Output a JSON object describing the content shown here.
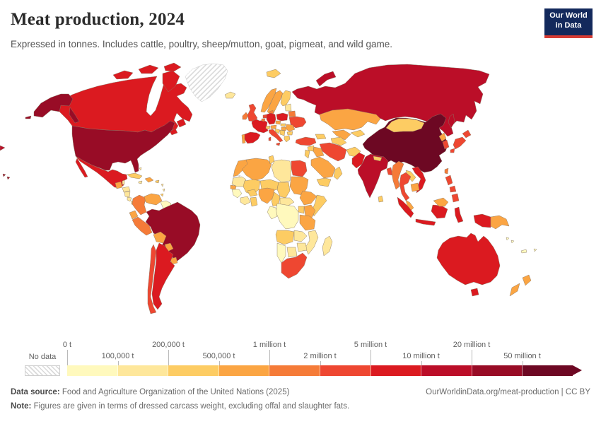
{
  "header": {
    "title": "Meat production, 2024",
    "subtitle": "Expressed in tonnes. Includes cattle, poultry, sheep/mutton, goat, pigmeat, and wild game.",
    "logo_line1": "Our World",
    "logo_line2": "in Data"
  },
  "colors": {
    "scale": [
      "#FFF9BD",
      "#FEE79B",
      "#FDCC63",
      "#FBA543",
      "#F57B38",
      "#EE4731",
      "#DB1A20",
      "#BB0E28",
      "#980C26",
      "#6D0823"
    ],
    "no_data_hatch": "#d9d9d9",
    "border": "#8a7866",
    "logo_bg": "#13295c",
    "logo_red": "#d73c34"
  },
  "legend": {
    "no_data_label": "No data",
    "ticks": [
      {
        "label": "0 t",
        "pos": 0,
        "row": "top"
      },
      {
        "label": "100,000 t",
        "pos": 1,
        "row": "bottom"
      },
      {
        "label": "200,000 t",
        "pos": 2,
        "row": "top"
      },
      {
        "label": "500,000 t",
        "pos": 3,
        "row": "bottom"
      },
      {
        "label": "1 million t",
        "pos": 4,
        "row": "top"
      },
      {
        "label": "2 million t",
        "pos": 5,
        "row": "bottom"
      },
      {
        "label": "5 million t",
        "pos": 6,
        "row": "top"
      },
      {
        "label": "10 million t",
        "pos": 7,
        "row": "bottom"
      },
      {
        "label": "20 million t",
        "pos": 8,
        "row": "top"
      },
      {
        "label": "50 million t",
        "pos": 9,
        "row": "bottom"
      }
    ]
  },
  "footer": {
    "source_label": "Data source:",
    "source": " Food and Agriculture Organization of the United Nations (2025)",
    "link": "OurWorldinData.org/meat-production | CC BY",
    "note_label": "Note:",
    "note": " Figures are given in terms of dressed carcass weight, excluding offal and slaughter fats."
  },
  "chart_data": {
    "type": "heatmap",
    "subtype": "choropleth-world-map",
    "title": "Meat production, 2024",
    "unit": "tonnes",
    "legend_position": "bottom",
    "bins": [
      "0–100,000 t",
      "100,000–200,000 t",
      "200,000–500,000 t",
      "500,000 t–1 million t",
      "1–2 million t",
      "2–5 million t",
      "5–10 million t",
      "10–20 million t",
      "20–50 million t",
      "50+ million t"
    ],
    "no_data_regions": [
      "Greenland",
      "Western Sahara"
    ],
    "countries": [
      {
        "id": "canada",
        "name": "Canada",
        "bucket": 6
      },
      {
        "id": "alaska",
        "name": "United States (Alaska)",
        "bucket": 8
      },
      {
        "id": "aleutians",
        "name": "United States (Aleutians)",
        "bucket": 8
      },
      {
        "id": "usa",
        "name": "United States",
        "bucket": 8
      },
      {
        "id": "hawaii",
        "name": "United States (Hawaii)",
        "bucket": 8
      },
      {
        "id": "greenland",
        "name": "Greenland",
        "bucket": -1
      },
      {
        "id": "mexico",
        "name": "Mexico",
        "bucket": 6
      },
      {
        "id": "baja",
        "name": "Mexico (Baja)",
        "bucket": 6
      },
      {
        "id": "guatemala",
        "name": "Guatemala",
        "bucket": 3
      },
      {
        "id": "belize",
        "name": "Belize",
        "bucket": 1
      },
      {
        "id": "honduras",
        "name": "Honduras",
        "bucket": 1
      },
      {
        "id": "nicaragua",
        "name": "Nicaragua",
        "bucket": 1
      },
      {
        "id": "costa-rica",
        "name": "Costa Rica",
        "bucket": 1
      },
      {
        "id": "panama",
        "name": "Panama",
        "bucket": 2
      },
      {
        "id": "cuba",
        "name": "Cuba",
        "bucket": 2
      },
      {
        "id": "jamaica",
        "name": "Jamaica",
        "bucket": 1
      },
      {
        "id": "hispaniola",
        "name": "Dominican Republic / Haiti",
        "bucket": 3
      },
      {
        "id": "puerto-rico",
        "name": "Puerto Rico",
        "bucket": 2
      },
      {
        "id": "bahamas",
        "name": "Bahamas",
        "bucket": 1
      },
      {
        "id": "lesser-antilles",
        "name": "Lesser Antilles",
        "bucket": 1
      },
      {
        "id": "trinidad",
        "name": "Trinidad and Tobago",
        "bucket": 2
      },
      {
        "id": "colombia",
        "name": "Colombia",
        "bucket": 4
      },
      {
        "id": "venezuela",
        "name": "Venezuela",
        "bucket": 3
      },
      {
        "id": "guyanas",
        "name": "Guyana / Suriname",
        "bucket": 0
      },
      {
        "id": "ecuador",
        "name": "Ecuador",
        "bucket": 3
      },
      {
        "id": "peru",
        "name": "Peru",
        "bucket": 4
      },
      {
        "id": "brazil",
        "name": "Brazil",
        "bucket": 8
      },
      {
        "id": "bolivia",
        "name": "Bolivia",
        "bucket": 3
      },
      {
        "id": "paraguay",
        "name": "Paraguay",
        "bucket": 3
      },
      {
        "id": "uruguay",
        "name": "Uruguay",
        "bucket": 3
      },
      {
        "id": "argentina",
        "name": "Argentina",
        "bucket": 6
      },
      {
        "id": "chile",
        "name": "Chile",
        "bucket": 5
      },
      {
        "id": "iceland",
        "name": "Iceland",
        "bucket": 1
      },
      {
        "id": "ireland",
        "name": "Ireland",
        "bucket": 4
      },
      {
        "id": "uk",
        "name": "United Kingdom",
        "bucket": 5
      },
      {
        "id": "portugal",
        "name": "Portugal",
        "bucket": 3
      },
      {
        "id": "spain",
        "name": "Spain",
        "bucket": 6
      },
      {
        "id": "france",
        "name": "France",
        "bucket": 6
      },
      {
        "id": "netherlands",
        "name": "Netherlands",
        "bucket": 5
      },
      {
        "id": "belgium",
        "name": "Belgium",
        "bucket": 4
      },
      {
        "id": "germany",
        "name": "Germany",
        "bucket": 6
      },
      {
        "id": "denmark",
        "name": "Denmark",
        "bucket": 4
      },
      {
        "id": "norway",
        "name": "Norway",
        "bucket": 3
      },
      {
        "id": "sweden",
        "name": "Sweden",
        "bucket": 3
      },
      {
        "id": "finland",
        "name": "Finland",
        "bucket": 2
      },
      {
        "id": "svalbard",
        "name": "Svalbard",
        "bucket": 2
      },
      {
        "id": "baltics",
        "name": "Baltic states",
        "bucket": 1
      },
      {
        "id": "belarus",
        "name": "Belarus",
        "bucket": 4
      },
      {
        "id": "poland",
        "name": "Poland",
        "bucket": 6
      },
      {
        "id": "czechia",
        "name": "Czechia",
        "bucket": 3
      },
      {
        "id": "slovakia",
        "name": "Slovakia",
        "bucket": 2
      },
      {
        "id": "austria",
        "name": "Austria",
        "bucket": 3
      },
      {
        "id": "switzerland",
        "name": "Switzerland",
        "bucket": 2
      },
      {
        "id": "hungary",
        "name": "Hungary",
        "bucket": 3
      },
      {
        "id": "ukraine",
        "name": "Ukraine",
        "bucket": 5
      },
      {
        "id": "romania",
        "name": "Romania",
        "bucket": 3
      },
      {
        "id": "bulgaria",
        "name": "Bulgaria",
        "bucket": 2
      },
      {
        "id": "serbia",
        "name": "Serbia",
        "bucket": 2
      },
      {
        "id": "croatia",
        "name": "Croatia / Bosnia",
        "bucket": 2
      },
      {
        "id": "greece",
        "name": "Greece",
        "bucket": 2
      },
      {
        "id": "italy",
        "name": "Italy",
        "bucket": 5
      },
      {
        "id": "sicily",
        "name": "Italy (Sicily)",
        "bucket": 5
      },
      {
        "id": "sardinia",
        "name": "Italy (Sardinia)",
        "bucket": 5
      },
      {
        "id": "russia",
        "name": "Russia",
        "bucket": 7
      },
      {
        "id": "russia-wrap",
        "name": "Russia (far east)",
        "bucket": 7
      },
      {
        "id": "novaya-zemlya",
        "name": "Russia (Novaya Zemlya)",
        "bucket": 7
      },
      {
        "id": "sakhalin",
        "name": "Russia (Sakhalin)",
        "bucket": 7
      },
      {
        "id": "turkey",
        "name": "Turkey",
        "bucket": 5
      },
      {
        "id": "caucasus",
        "name": "Georgia / Azerbaijan",
        "bucket": 2
      },
      {
        "id": "kazakhstan",
        "name": "Kazakhstan",
        "bucket": 3
      },
      {
        "id": "uzbekistan",
        "name": "Uzbekistan",
        "bucket": 3
      },
      {
        "id": "turkmenistan",
        "name": "Turkmenistan",
        "bucket": 2
      },
      {
        "id": "kyrgyz-tajik",
        "name": "Kyrgyzstan / Tajikistan",
        "bucket": 2
      },
      {
        "id": "iran",
        "name": "Iran",
        "bucket": 5
      },
      {
        "id": "iraq",
        "name": "Iraq",
        "bucket": 3
      },
      {
        "id": "syria",
        "name": "Syria",
        "bucket": 2
      },
      {
        "id": "israel-jordan",
        "name": "Israel / Jordan",
        "bucket": 2
      },
      {
        "id": "saudi-arabia",
        "name": "Saudi Arabia",
        "bucket": 3
      },
      {
        "id": "yemen",
        "name": "Yemen",
        "bucket": 2
      },
      {
        "id": "oman",
        "name": "Oman",
        "bucket": 2
      },
      {
        "id": "afghanistan",
        "name": "Afghanistan",
        "bucket": 2
      },
      {
        "id": "pakistan",
        "name": "Pakistan",
        "bucket": 6
      },
      {
        "id": "india",
        "name": "India",
        "bucket": 7
      },
      {
        "id": "nepal",
        "name": "Nepal",
        "bucket": 2
      },
      {
        "id": "bangladesh",
        "name": "Bangladesh",
        "bucket": 5
      },
      {
        "id": "sri-lanka",
        "name": "Sri Lanka",
        "bucket": 2
      },
      {
        "id": "myanmar",
        "name": "Myanmar",
        "bucket": 4
      },
      {
        "id": "thailand",
        "name": "Thailand",
        "bucket": 5
      },
      {
        "id": "laos",
        "name": "Laos",
        "bucket": 2
      },
      {
        "id": "vietnam",
        "name": "Vietnam",
        "bucket": 6
      },
      {
        "id": "cambodia",
        "name": "Cambodia",
        "bucket": 3
      },
      {
        "id": "malaysia",
        "name": "Malaysia",
        "bucket": 3
      },
      {
        "id": "malaysia-borneo",
        "name": "Malaysia (Borneo)",
        "bucket": 3
      },
      {
        "id": "china",
        "name": "China",
        "bucket": 9
      },
      {
        "id": "mongolia",
        "name": "Mongolia",
        "bucket": 2
      },
      {
        "id": "north-korea",
        "name": "North Korea",
        "bucket": 3
      },
      {
        "id": "south-korea",
        "name": "South Korea",
        "bucket": 5
      },
      {
        "id": "japan-hokkaido",
        "name": "Japan (Hokkaido)",
        "bucket": 5
      },
      {
        "id": "japan-honshu",
        "name": "Japan (Honshu)",
        "bucket": 5
      },
      {
        "id": "japan-kyushu",
        "name": "Japan (Kyushu)",
        "bucket": 5
      },
      {
        "id": "taiwan",
        "name": "Taiwan",
        "bucket": 4
      },
      {
        "id": "phil-luzon",
        "name": "Philippines (Luzon)",
        "bucket": 5
      },
      {
        "id": "phil-visayas",
        "name": "Philippines (Visayas)",
        "bucket": 5
      },
      {
        "id": "phil-mindanao",
        "name": "Philippines (Mindanao)",
        "bucket": 5
      },
      {
        "id": "sumatra",
        "name": "Indonesia (Sumatra)",
        "bucket": 6
      },
      {
        "id": "java",
        "name": "Indonesia (Java)",
        "bucket": 6
      },
      {
        "id": "borneo-indonesia",
        "name": "Indonesia (Kalimantan)",
        "bucket": 6
      },
      {
        "id": "sulawesi",
        "name": "Indonesia (Sulawesi)",
        "bucket": 6
      },
      {
        "id": "indonesia-papua",
        "name": "Indonesia (Papua)",
        "bucket": 6
      },
      {
        "id": "papua-new-guinea",
        "name": "Papua New Guinea",
        "bucket": 3
      },
      {
        "id": "morocco",
        "name": "Morocco",
        "bucket": 3
      },
      {
        "id": "western-sahara",
        "name": "Western Sahara",
        "bucket": -1
      },
      {
        "id": "algeria",
        "name": "Algeria",
        "bucket": 3
      },
      {
        "id": "tunisia",
        "name": "Tunisia",
        "bucket": 2
      },
      {
        "id": "libya",
        "name": "Libya",
        "bucket": 1
      },
      {
        "id": "egypt",
        "name": "Egypt",
        "bucket": 5
      },
      {
        "id": "mauritania",
        "name": "Mauritania",
        "bucket": 1
      },
      {
        "id": "mali",
        "name": "Mali",
        "bucket": 2
      },
      {
        "id": "niger",
        "name": "Niger",
        "bucket": 2
      },
      {
        "id": "chad",
        "name": "Chad",
        "bucket": 2
      },
      {
        "id": "sudan",
        "name": "Sudan",
        "bucket": 3
      },
      {
        "id": "senegal",
        "name": "Senegal",
        "bucket": 3
      },
      {
        "id": "guinea",
        "name": "Guinea",
        "bucket": 0
      },
      {
        "id": "ivory-coast",
        "name": "Côte d'Ivoire",
        "bucket": 1
      },
      {
        "id": "ghana",
        "name": "Ghana",
        "bucket": 2
      },
      {
        "id": "burkina-faso",
        "name": "Burkina Faso",
        "bucket": 2
      },
      {
        "id": "nigeria",
        "name": "Nigeria",
        "bucket": 3
      },
      {
        "id": "cameroon",
        "name": "Cameroon",
        "bucket": 2
      },
      {
        "id": "car",
        "name": "Central African Republic",
        "bucket": 1
      },
      {
        "id": "ethiopia",
        "name": "Ethiopia",
        "bucket": 3
      },
      {
        "id": "somalia",
        "name": "Somalia",
        "bucket": 2
      },
      {
        "id": "kenya",
        "name": "Kenya",
        "bucket": 3
      },
      {
        "id": "uganda",
        "name": "Uganda",
        "bucket": 2
      },
      {
        "id": "tanzania",
        "name": "Tanzania",
        "bucket": 3
      },
      {
        "id": "dr-congo",
        "name": "Democratic Republic of Congo",
        "bucket": 0
      },
      {
        "id": "congo-gabon",
        "name": "Congo / Gabon",
        "bucket": 0
      },
      {
        "id": "angola",
        "name": "Angola",
        "bucket": 2
      },
      {
        "id": "zambia",
        "name": "Zambia",
        "bucket": 1
      },
      {
        "id": "mozambique",
        "name": "Mozambique",
        "bucket": 1
      },
      {
        "id": "zimbabwe",
        "name": "Zimbabwe",
        "bucket": 1
      },
      {
        "id": "botswana",
        "name": "Botswana",
        "bucket": 1
      },
      {
        "id": "namibia",
        "name": "Namibia",
        "bucket": 0
      },
      {
        "id": "south-africa",
        "name": "South Africa",
        "bucket": 5
      },
      {
        "id": "madagascar",
        "name": "Madagascar",
        "bucket": 1
      },
      {
        "id": "australia",
        "name": "Australia",
        "bucket": 6
      },
      {
        "id": "tasmania",
        "name": "Australia (Tasmania)",
        "bucket": 6
      },
      {
        "id": "nz-north",
        "name": "New Zealand (North Island)",
        "bucket": 3
      },
      {
        "id": "nz-south",
        "name": "New Zealand (South Island)",
        "bucket": 3
      },
      {
        "id": "fiji",
        "name": "Fiji",
        "bucket": 0
      },
      {
        "id": "new-caledonia",
        "name": "New Caledonia",
        "bucket": 0
      },
      {
        "id": "solomon",
        "name": "Solomon Islands",
        "bucket": 0
      }
    ]
  }
}
